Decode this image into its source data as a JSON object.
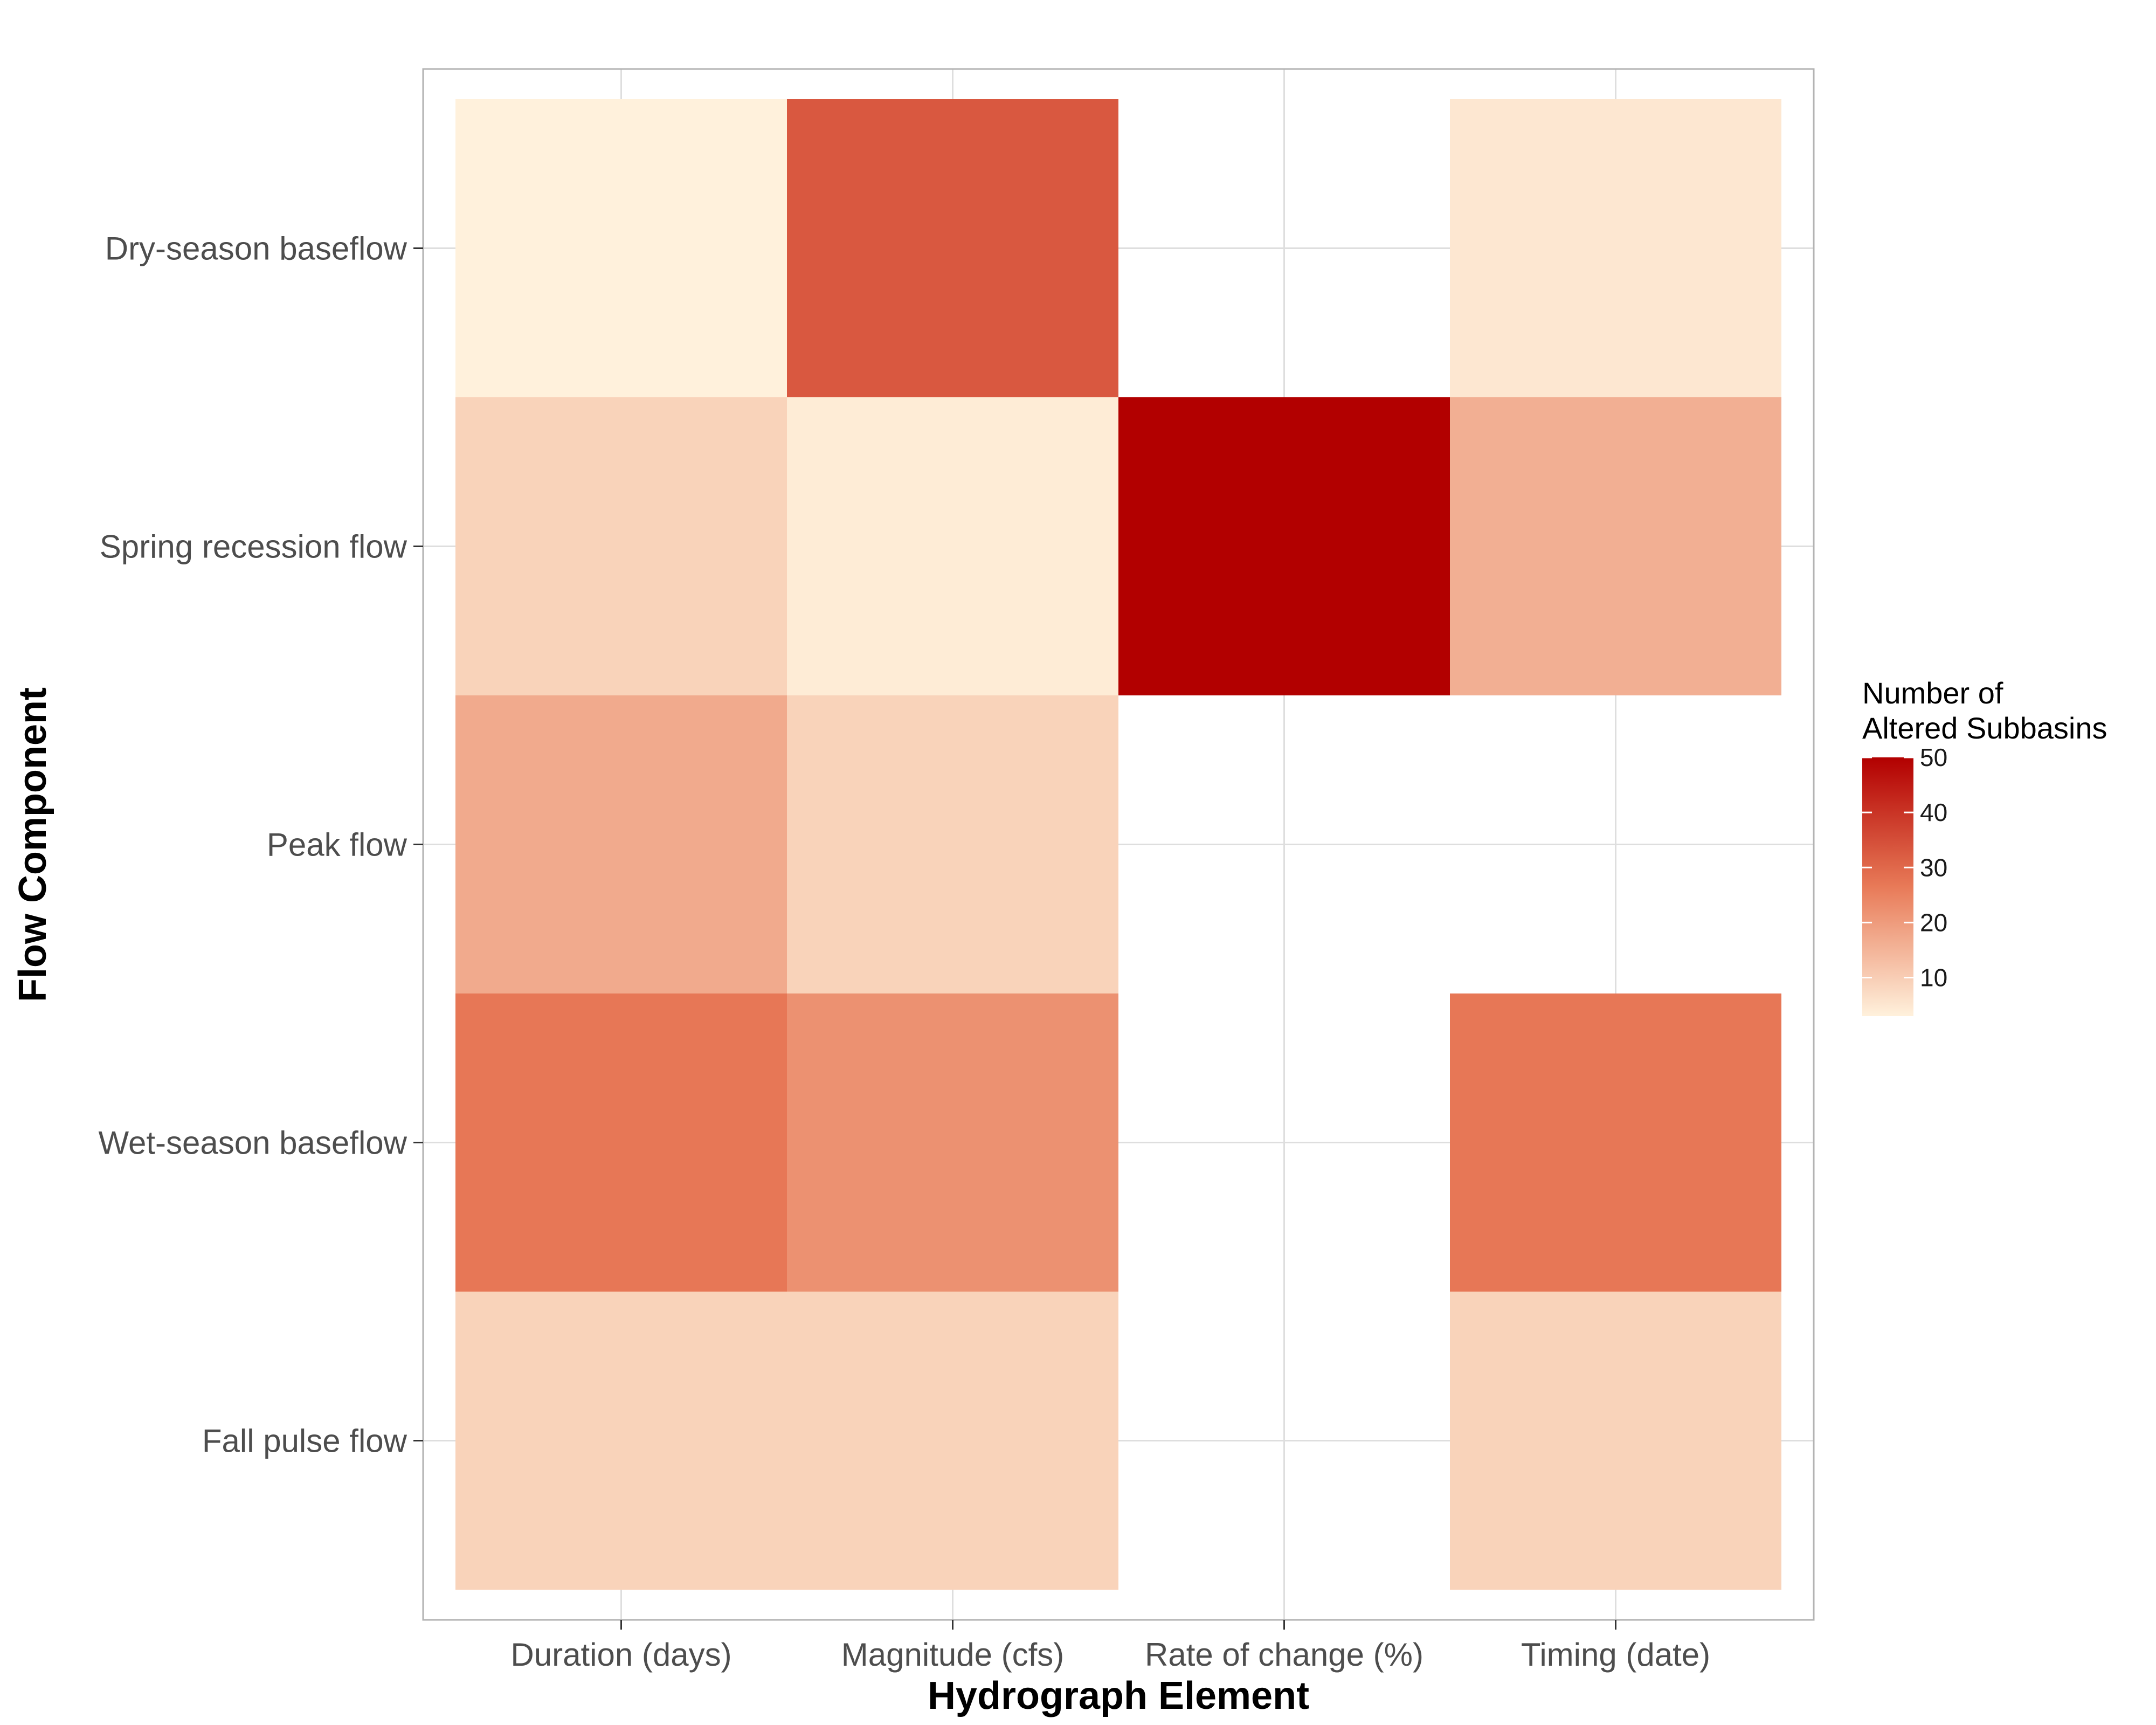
{
  "chart_data": {
    "type": "heatmap",
    "title": "",
    "xlabel": "Hydrograph Element",
    "ylabel": "Flow Component",
    "x_categories": [
      "Duration (days)",
      "Magnitude (cfs)",
      "Rate of change (%)",
      "Timing (date)"
    ],
    "y_categories": [
      "Dry-season baseflow",
      "Spring recession flow",
      "Peak flow",
      "Wet-season baseflow",
      "Fall pulse flow"
    ],
    "cells": [
      {
        "x": "Duration (days)",
        "y": "Dry-season baseflow",
        "value": 3
      },
      {
        "x": "Magnitude (cfs)",
        "y": "Dry-season baseflow",
        "value": 33
      },
      {
        "x": "Timing (date)",
        "y": "Dry-season baseflow",
        "value": 5
      },
      {
        "x": "Duration (days)",
        "y": "Spring recession flow",
        "value": 9
      },
      {
        "x": "Magnitude (cfs)",
        "y": "Spring recession flow",
        "value": 4
      },
      {
        "x": "Rate of change (%)",
        "y": "Spring recession flow",
        "value": 50
      },
      {
        "x": "Timing (date)",
        "y": "Spring recession flow",
        "value": 16
      },
      {
        "x": "Duration (days)",
        "y": "Peak flow",
        "value": 17
      },
      {
        "x": "Magnitude (cfs)",
        "y": "Peak flow",
        "value": 9
      },
      {
        "x": "Duration (days)",
        "y": "Wet-season baseflow",
        "value": 27
      },
      {
        "x": "Magnitude (cfs)",
        "y": "Wet-season baseflow",
        "value": 22
      },
      {
        "x": "Timing (date)",
        "y": "Wet-season baseflow",
        "value": 27
      },
      {
        "x": "Duration (days)",
        "y": "Fall pulse flow",
        "value": 9
      },
      {
        "x": "Magnitude (cfs)",
        "y": "Fall pulse flow",
        "value": 9
      },
      {
        "x": "Timing (date)",
        "y": "Fall pulse flow",
        "value": 9
      }
    ],
    "color_scale": {
      "range": [
        3,
        50
      ],
      "low_color": "#fff1dc",
      "high_color": "#b20000"
    },
    "legend": {
      "title_line1": "Number of",
      "title_line2": "Altered Subbasins",
      "ticks": [
        10,
        20,
        30,
        40,
        50
      ],
      "position": "right"
    },
    "grid": true,
    "colors": {
      "grid": "#dedede",
      "panel_border": "#b3b3b3",
      "background": "#ffffff"
    }
  }
}
